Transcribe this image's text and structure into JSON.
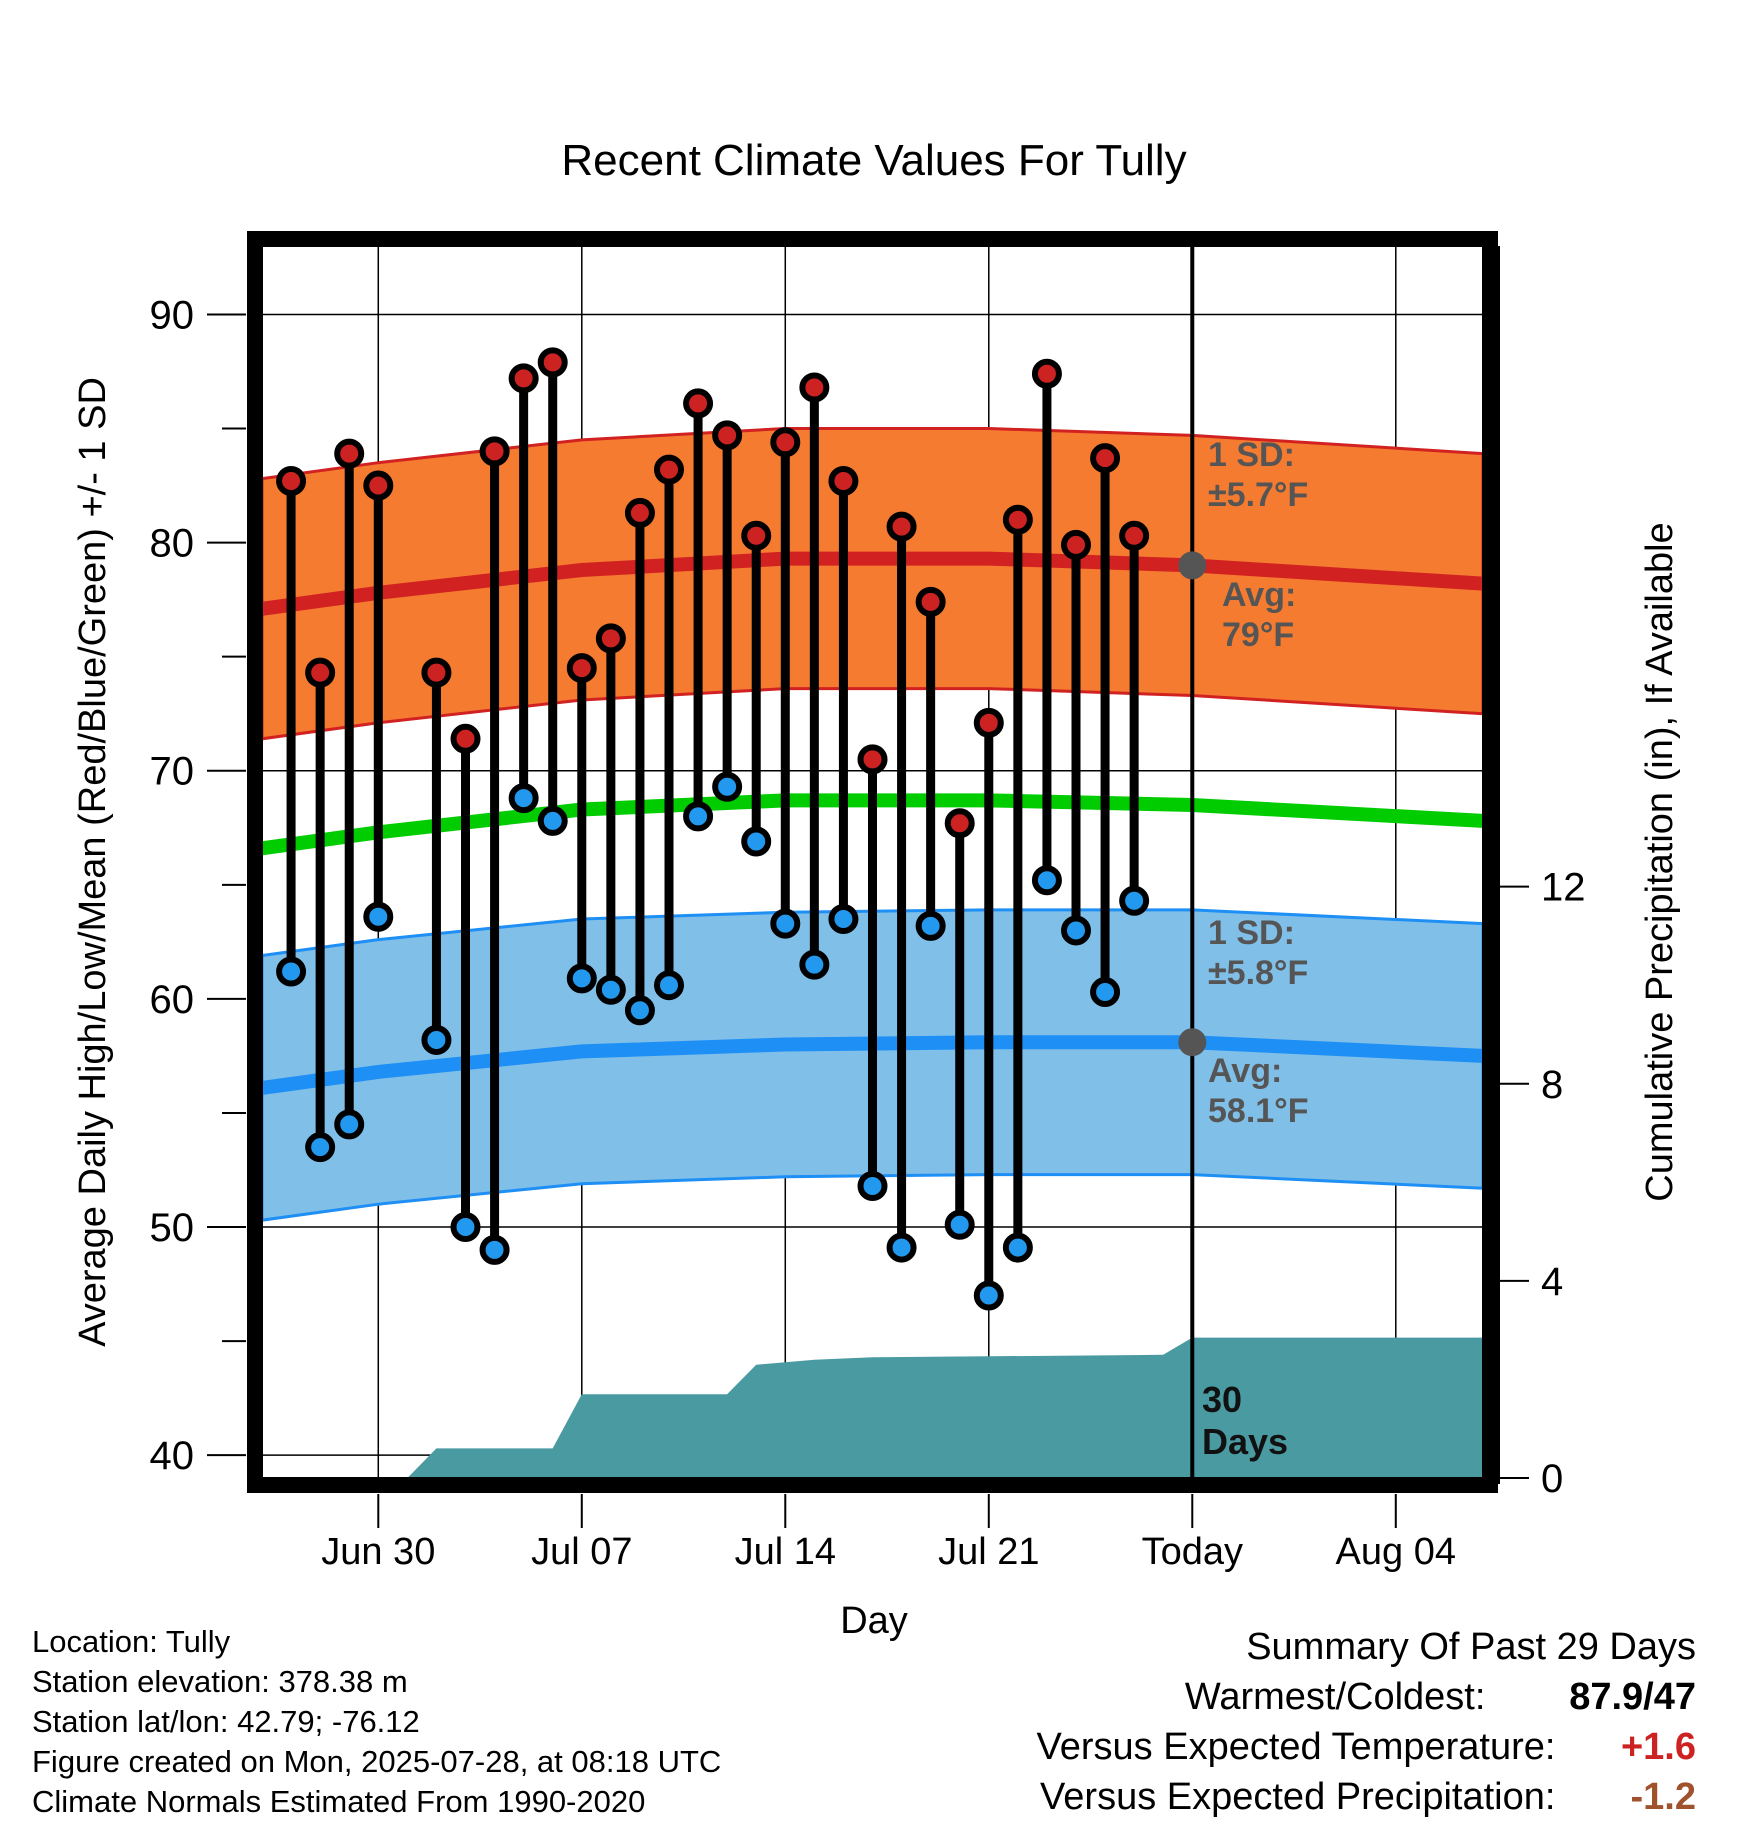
{
  "chart_data": {
    "type": "line",
    "title": "Recent Climate Values For Tully",
    "xlabel": "Day",
    "ylabel": "Average Daily High/Low/Mean (Red/Blue/Green) +/- 1 SD",
    "y2label": "Cumulative Precipitation (in), If Available",
    "x_tick_labels": [
      "Jun 30",
      "Jul 07",
      "Jul 14",
      "Jul 21",
      "Today",
      "Aug 04"
    ],
    "y_ticks": [
      40,
      50,
      60,
      70,
      80,
      90
    ],
    "y2_ticks": [
      0,
      4,
      8,
      12
    ],
    "ylim": [
      39,
      93
    ],
    "y2lim": [
      0,
      25
    ],
    "xlim": [
      "2025-06-26",
      "2025-08-07"
    ],
    "today": "2025-07-28",
    "observed": {
      "dates": [
        "2025-06-27",
        "2025-06-28",
        "2025-06-29",
        "2025-06-30",
        "2025-07-02",
        "2025-07-03",
        "2025-07-04",
        "2025-07-05",
        "2025-07-06",
        "2025-07-07",
        "2025-07-08",
        "2025-07-09",
        "2025-07-10",
        "2025-07-11",
        "2025-07-12",
        "2025-07-13",
        "2025-07-14",
        "2025-07-15",
        "2025-07-16",
        "2025-07-17",
        "2025-07-18",
        "2025-07-19",
        "2025-07-20",
        "2025-07-21",
        "2025-07-22",
        "2025-07-23",
        "2025-07-24",
        "2025-07-25",
        "2025-07-26",
        "2025-07-27"
      ],
      "high": [
        82.7,
        74.3,
        83.9,
        82.5,
        74.3,
        71.4,
        84.0,
        87.2,
        87.9,
        74.5,
        75.8,
        81.3,
        83.2,
        86.1,
        84.7,
        80.3,
        84.4,
        86.8,
        82.7,
        70.5,
        80.7,
        77.4,
        67.7,
        72.1,
        81.0,
        87.4,
        79.9,
        83.7,
        80.3,
        null
      ],
      "low": [
        61.2,
        53.5,
        54.5,
        63.6,
        58.2,
        50.0,
        49.0,
        68.8,
        67.8,
        60.9,
        60.4,
        59.5,
        60.6,
        68.0,
        69.3,
        66.9,
        63.3,
        61.5,
        63.5,
        51.8,
        49.1,
        63.2,
        50.1,
        47.0,
        49.1,
        65.2,
        63.0,
        60.3,
        64.3,
        null
      ]
    },
    "normals": {
      "dates": [
        "2025-06-26",
        "2025-06-30",
        "2025-07-07",
        "2025-07-14",
        "2025-07-21",
        "2025-07-28",
        "2025-08-07"
      ],
      "high_mean": [
        77.1,
        77.8,
        78.8,
        79.3,
        79.3,
        79.0,
        78.2
      ],
      "high_sd": 5.7,
      "low_mean": [
        56.1,
        56.8,
        57.7,
        58.0,
        58.1,
        58.1,
        57.5
      ],
      "low_sd": 5.8,
      "mean": [
        66.6,
        67.3,
        68.3,
        68.7,
        68.7,
        68.5,
        67.8
      ]
    },
    "precipitation": {
      "dates": [
        "2025-06-26",
        "2025-07-01",
        "2025-07-02",
        "2025-07-06",
        "2025-07-07",
        "2025-07-12",
        "2025-07-13",
        "2025-07-15",
        "2025-07-17",
        "2025-07-27",
        "2025-07-28",
        "2025-08-07"
      ],
      "cumulative": [
        0,
        0,
        0.6,
        0.6,
        1.7,
        1.7,
        2.3,
        2.4,
        2.45,
        2.5,
        2.85,
        2.85
      ]
    },
    "annotations": {
      "high_sd": [
        "1 SD:",
        "±5.7°F"
      ],
      "high_avg": [
        "Avg:",
        "79°F"
      ],
      "low_sd": [
        "1 SD:",
        "±5.8°F"
      ],
      "low_avg": [
        "Avg:",
        "58.1°F"
      ],
      "days": [
        "30",
        "Days"
      ]
    },
    "colors": {
      "high_band": "#f47b30",
      "high_line": "#d22121",
      "low_band": "#80bfe8",
      "low_line": "#1e8ff5",
      "mean_line": "#00cc00",
      "precip": "#4a9aa2",
      "annotation": "#555555",
      "high_dot": "#cc2222",
      "low_dot": "#2299ee"
    }
  },
  "info": {
    "location": "Location: Tully",
    "elevation": "Station elevation: 378.38 m",
    "latlon": "Station lat/lon: 42.79; -76.12",
    "created": "Figure created on Mon, 2025-07-28, at 08:18 UTC",
    "normals": "Climate Normals Estimated From 1990-2020"
  },
  "summary": {
    "title": "Summary Of Past 29 Days",
    "warmest_label": "Warmest/Coldest:",
    "warmest_value": "87.9/47",
    "temp_label": "Versus Expected Temperature:",
    "temp_value": "+1.6",
    "temp_color": "#cc2222",
    "precip_label": "Versus Expected Precipitation:",
    "precip_value": "-1.2",
    "precip_color": "#a0522d"
  }
}
